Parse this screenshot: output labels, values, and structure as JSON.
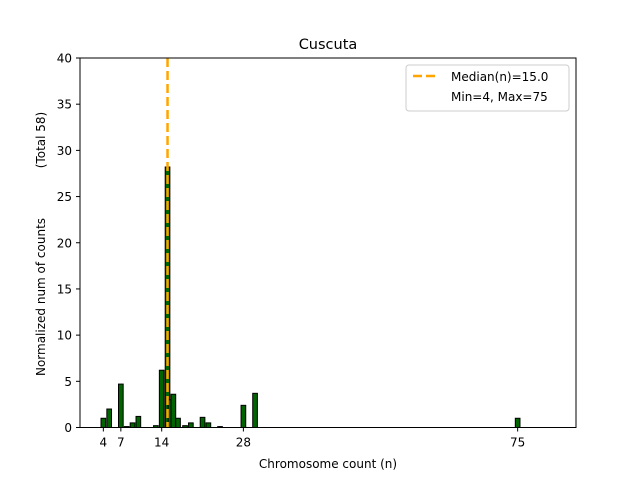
{
  "chart_data": {
    "type": "bar",
    "title": "Cuscuta",
    "xlabel": "Chromosome count (n)",
    "ylabel": "Normalized num of counts",
    "ylabel_total": "(Total 58)",
    "xlim": [
      0,
      85
    ],
    "ylim": [
      0,
      40
    ],
    "yticks": [
      0,
      5,
      10,
      15,
      20,
      25,
      30,
      35,
      40
    ],
    "xticks": [
      4,
      7,
      14,
      28,
      75
    ],
    "bar_width": 0.8,
    "bars": [
      {
        "x": 4,
        "value": 1.0
      },
      {
        "x": 5,
        "value": 2.0
      },
      {
        "x": 7,
        "value": 4.7
      },
      {
        "x": 8,
        "value": 0.1
      },
      {
        "x": 9,
        "value": 0.5
      },
      {
        "x": 10,
        "value": 1.2
      },
      {
        "x": 13,
        "value": 0.2
      },
      {
        "x": 14,
        "value": 6.2
      },
      {
        "x": 15,
        "value": 28.2
      },
      {
        "x": 15.5,
        "value": 3.0
      },
      {
        "x": 16,
        "value": 3.6
      },
      {
        "x": 16.8,
        "value": 1.0
      },
      {
        "x": 18,
        "value": 0.2
      },
      {
        "x": 19,
        "value": 0.5
      },
      {
        "x": 21,
        "value": 1.1
      },
      {
        "x": 22,
        "value": 0.5
      },
      {
        "x": 24,
        "value": 0.1
      },
      {
        "x": 28,
        "value": 2.4
      },
      {
        "x": 30,
        "value": 3.7
      },
      {
        "x": 75,
        "value": 1.0
      }
    ],
    "median": 15.0,
    "legend": {
      "position": "upper-right",
      "median_label": "Median(n)=15.0",
      "range_label": "Min=4, Max=75"
    },
    "colors": {
      "bar_fill": "#006400",
      "bar_edge": "#000000",
      "median_line": "#ffa500"
    }
  }
}
